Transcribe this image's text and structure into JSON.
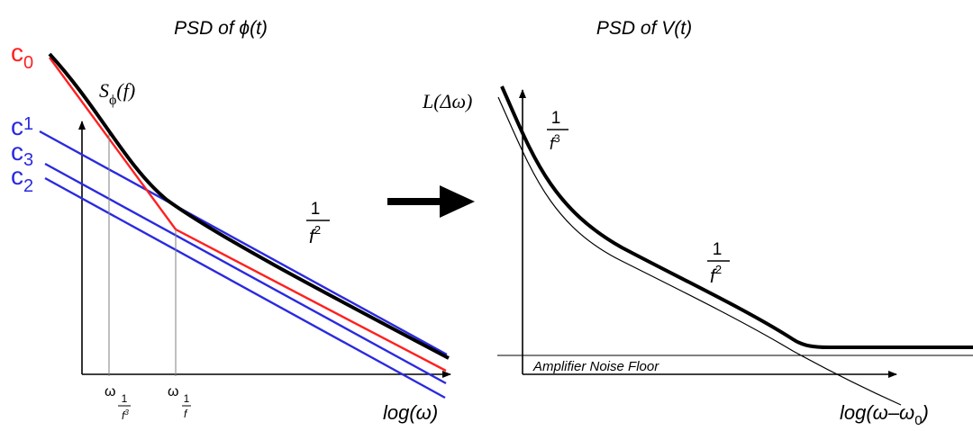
{
  "left_panel": {
    "title": "PSD of ϕ(t)",
    "curve_label": "S",
    "curve_label_sub": "ϕ",
    "curve_label_arg": "(f)",
    "slope_label": {
      "num": "1",
      "den": "f",
      "exp": "2"
    },
    "x_axis_label": "log(ω)",
    "constants": [
      {
        "base": "c",
        "sub": "0",
        "color": "#ff2020"
      },
      {
        "base": "c",
        "sub": "1",
        "color": "#2a2ae0"
      },
      {
        "base": "c",
        "sub": "3",
        "color": "#2a2ae0"
      },
      {
        "base": "c",
        "sub": "2",
        "color": "#2a2ae0"
      }
    ],
    "corner_labels": [
      {
        "base": "ω",
        "num": "1",
        "den": "f",
        "exp": "3"
      },
      {
        "base": "ω",
        "num": "1",
        "den": "f",
        "exp": ""
      }
    ]
  },
  "arrow": "right-arrow",
  "right_panel": {
    "title": "PSD of V(t)",
    "y_axis_label": "L(Δω)",
    "slope3_label": {
      "num": "1",
      "den": "f",
      "exp": "3"
    },
    "slope2_label": {
      "num": "1",
      "den": "f",
      "exp": "2"
    },
    "noise_floor_label": "Amplifier Noise Floor",
    "x_axis_label": "log(ω–ω",
    "x_axis_sub": "0",
    "x_axis_close": ")"
  },
  "colors": {
    "red": "#ff2020",
    "blue": "#2a2ae0",
    "black": "#000000",
    "gray": "#808080"
  }
}
